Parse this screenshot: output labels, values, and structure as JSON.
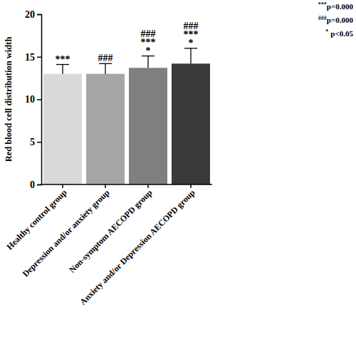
{
  "chart_data": {
    "type": "bar",
    "y_label": "Red blood cell distribution width",
    "categories": [
      "Healthy control group",
      "Depression and/or anxiety group",
      "Non-symptom AECOPD group",
      "Anxiety and/or Depression AECOPD group"
    ],
    "values": [
      13.0,
      13.0,
      13.7,
      14.2
    ],
    "errors": [
      1.1,
      1.2,
      1.4,
      1.8
    ],
    "colors": [
      "#d9d9d9",
      "#a6a6a6",
      "#7f7f7f",
      "#3a3a3a"
    ],
    "ylim": [
      0,
      20
    ],
    "yticks": [
      0,
      5,
      10,
      15,
      20
    ],
    "annotations": [
      [
        "***"
      ],
      [
        "###"
      ],
      [
        "###",
        "***",
        "*"
      ],
      [
        "###",
        "***",
        "*"
      ]
    ],
    "significance_legend": [
      {
        "symbol": "***",
        "text": "p=0.000"
      },
      {
        "symbol": "###",
        "text": "p=0.000"
      },
      {
        "symbol": "*",
        "text": "p<0.05"
      }
    ]
  }
}
